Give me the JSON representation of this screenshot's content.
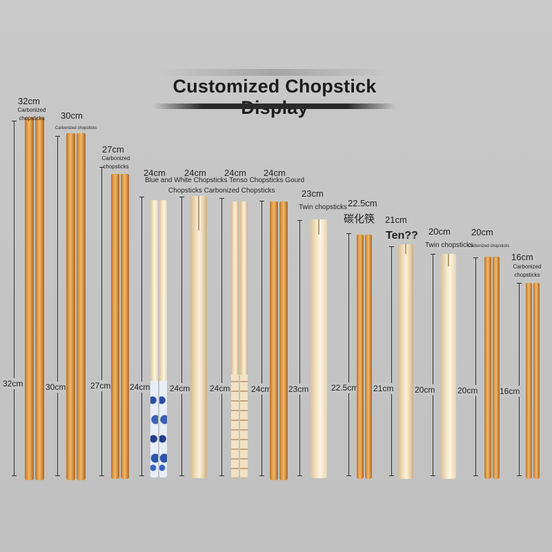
{
  "title": "Customized Chopstick Display",
  "top_labels": {
    "l1": "32cm",
    "l1_sub": "Carbonized chopsticks",
    "l2": "30cm",
    "l2_sub": "Carbonized chopsticks",
    "l3": "27cm",
    "l3_sub": "Carbonized chopsticks",
    "l4": "24cm",
    "l5": "24cm",
    "l6": "24cm",
    "l7": "24cm",
    "group_line1": "Blue and White Chopsticks Tenso Chopsticks Gourd",
    "group_line2": "Chopsticks Carbonized Chopsticks",
    "l8": "23cm",
    "l8_sub": "Twin chopsticks",
    "l9": "22.5cm",
    "l9_sub": "碳化筷",
    "l10": "21cm",
    "l10_sub": "Ten??",
    "l11": "20cm",
    "l11_sub": "Twin chopsticks",
    "l12": "20cm",
    "l12_sub": "Carbonized chopsticks",
    "l13": "16cm",
    "l13_sub": "Carbonized chopsticks"
  },
  "side_labels": [
    "32cm",
    "30cm",
    "27cm",
    "24cm",
    "24cm",
    "24cm",
    "24cm",
    "23cm",
    "22.5cm",
    "21cm",
    "20cm",
    "20cm",
    "16cm"
  ],
  "colors": {
    "carbonized": "#d89544",
    "bamboo": "#f3e2c2",
    "blue_white": "#2c4fa3"
  }
}
